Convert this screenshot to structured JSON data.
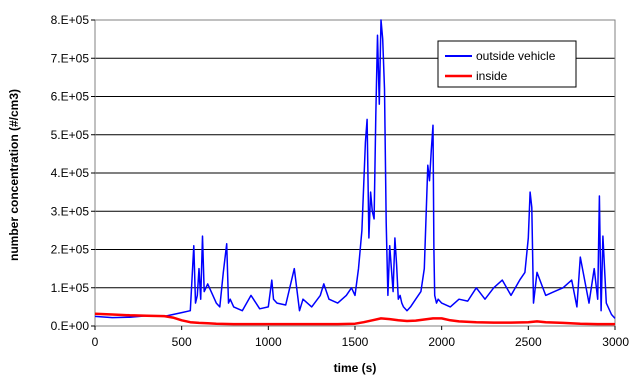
{
  "chart_data": {
    "type": "line",
    "title": "",
    "xlabel": "time (s)",
    "ylabel": "number concentration (#/cm3)",
    "xlim": [
      0,
      3000
    ],
    "ylim": [
      0,
      800000
    ],
    "x_ticks": [
      0,
      500,
      1000,
      1500,
      2000,
      2500,
      3000
    ],
    "y_ticks": [
      0,
      100000,
      200000,
      300000,
      400000,
      500000,
      600000,
      700000,
      800000
    ],
    "x_tick_labels": [
      "0",
      "500",
      "1000",
      "1500",
      "2000",
      "2500",
      "3000"
    ],
    "y_tick_labels": [
      "0.E+00",
      "1.E+05",
      "2.E+05",
      "3.E+05",
      "4.E+05",
      "5.E+05",
      "6.E+05",
      "7.E+05",
      "8.E+05"
    ],
    "grid": "horizontal",
    "legend_position": "top-right",
    "series": [
      {
        "name": "outside vehicle",
        "color": "#0000ff",
        "x": [
          0,
          100,
          200,
          300,
          400,
          450,
          500,
          550,
          570,
          580,
          590,
          600,
          610,
          620,
          630,
          650,
          680,
          700,
          720,
          740,
          760,
          770,
          780,
          800,
          850,
          900,
          950,
          1000,
          1020,
          1030,
          1050,
          1100,
          1150,
          1180,
          1200,
          1250,
          1300,
          1320,
          1350,
          1400,
          1450,
          1480,
          1500,
          1520,
          1540,
          1560,
          1570,
          1580,
          1590,
          1600,
          1610,
          1620,
          1630,
          1640,
          1650,
          1660,
          1670,
          1680,
          1690,
          1700,
          1710,
          1720,
          1730,
          1740,
          1750,
          1760,
          1770,
          1780,
          1800,
          1820,
          1850,
          1880,
          1900,
          1920,
          1930,
          1940,
          1950,
          1955,
          1960,
          1970,
          1980,
          2000,
          2050,
          2100,
          2150,
          2200,
          2250,
          2300,
          2350,
          2400,
          2450,
          2480,
          2500,
          2510,
          2520,
          2530,
          2550,
          2600,
          2650,
          2700,
          2750,
          2780,
          2800,
          2850,
          2880,
          2900,
          2910,
          2920,
          2930,
          2950,
          2980,
          3000
        ],
        "values": [
          25000,
          22000,
          23000,
          27000,
          25000,
          30000,
          35000,
          40000,
          210000,
          60000,
          80000,
          150000,
          70000,
          235000,
          90000,
          110000,
          80000,
          60000,
          50000,
          140000,
          215000,
          60000,
          70000,
          50000,
          40000,
          80000,
          45000,
          50000,
          120000,
          70000,
          60000,
          55000,
          150000,
          40000,
          70000,
          50000,
          80000,
          110000,
          70000,
          60000,
          80000,
          100000,
          80000,
          150000,
          250000,
          480000,
          540000,
          230000,
          350000,
          300000,
          280000,
          550000,
          760000,
          580000,
          800000,
          750000,
          620000,
          270000,
          80000,
          210000,
          150000,
          90000,
          230000,
          160000,
          70000,
          80000,
          60000,
          50000,
          40000,
          50000,
          70000,
          90000,
          150000,
          420000,
          380000,
          460000,
          525000,
          200000,
          80000,
          60000,
          70000,
          60000,
          50000,
          70000,
          65000,
          100000,
          70000,
          100000,
          120000,
          80000,
          120000,
          140000,
          230000,
          350000,
          310000,
          60000,
          140000,
          80000,
          90000,
          100000,
          120000,
          50000,
          180000,
          60000,
          150000,
          70000,
          340000,
          40000,
          235000,
          60000,
          30000,
          20000
        ]
      },
      {
        "name": "inside",
        "color": "#ff0000",
        "x": [
          0,
          100,
          200,
          300,
          400,
          450,
          500,
          550,
          600,
          650,
          700,
          800,
          900,
          1000,
          1100,
          1200,
          1300,
          1400,
          1500,
          1550,
          1600,
          1650,
          1700,
          1750,
          1800,
          1850,
          1900,
          1950,
          2000,
          2050,
          2100,
          2200,
          2300,
          2400,
          2500,
          2550,
          2600,
          2700,
          2800,
          2900,
          3000
        ],
        "values": [
          32000,
          30000,
          28000,
          27000,
          26000,
          22000,
          15000,
          10000,
          8000,
          7000,
          6000,
          5000,
          5000,
          5000,
          5000,
          5000,
          5000,
          5000,
          6000,
          10000,
          15000,
          20000,
          18000,
          15000,
          13000,
          14000,
          17000,
          20000,
          20000,
          15000,
          12000,
          10000,
          9000,
          9000,
          10000,
          12000,
          10000,
          8000,
          6000,
          5000,
          5000
        ]
      }
    ]
  }
}
